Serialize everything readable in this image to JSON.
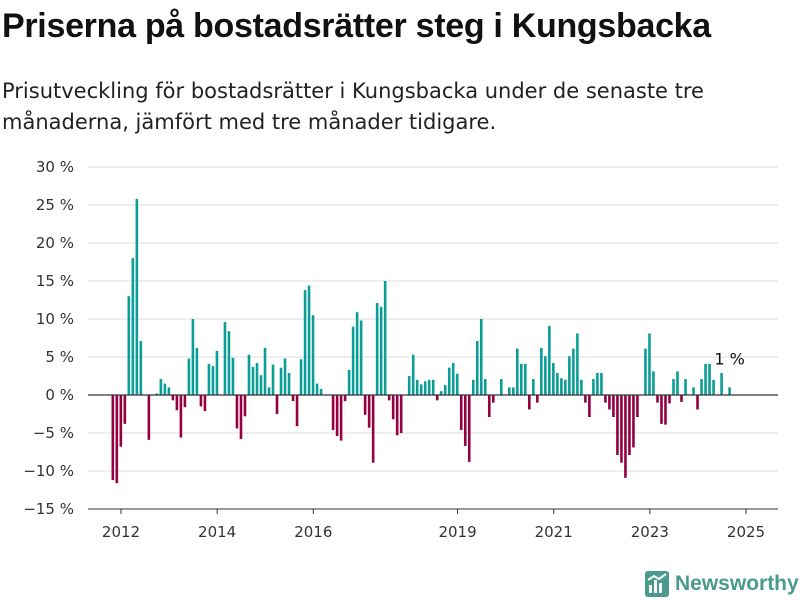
{
  "header": {
    "title": "Priserna på bostadsrätter steg i Kungsbacka",
    "subtitle": "Prisutveckling för bostadsrätter i Kungsbacka under de senaste tre månaderna, jämfört med tre månader tidigare."
  },
  "brand": {
    "name": "Newsworthy",
    "icon": "newsworthy-logo-icon",
    "color": "#4a9a8d"
  },
  "colors": {
    "positive": "#0b9e96",
    "negative": "#950040",
    "grid": "#dddddd",
    "axis": "#333333"
  },
  "chart_data": {
    "type": "bar",
    "ylim": [
      -15,
      30
    ],
    "ytick_values": [
      -15,
      -10,
      -5,
      0,
      5,
      10,
      15,
      20,
      25,
      30
    ],
    "ytick_labels": [
      "−15 %",
      "−10 %",
      "−5 %",
      "0 %",
      "5 %",
      "10 %",
      "15 %",
      "20 %",
      "25 %",
      "30 %"
    ],
    "xtick_labels": [
      "2012",
      "2014",
      "2016",
      "2019",
      "2021",
      "2023",
      "2025"
    ],
    "xtick_positions": [
      2012.25,
      2014.25,
      2016.25,
      2019.25,
      2021.25,
      2023.25,
      2025.25
    ],
    "x_start": 2012.08,
    "x_step": 0.0833,
    "values": [
      -11.2,
      -11.6,
      -6.8,
      -3.8,
      13,
      18,
      25.8,
      7.1,
      0,
      -5.9,
      0,
      0.2,
      2.1,
      1.5,
      1,
      -0.7,
      -2,
      -5.6,
      -1.6,
      4.8,
      10,
      6.2,
      -1.5,
      -2.1,
      4.1,
      3.8,
      5.8,
      0,
      9.6,
      8.4,
      4.9,
      -4.4,
      -5.8,
      -2.8,
      5.3,
      3.7,
      4.2,
      2.6,
      6.2,
      1,
      4,
      -2.5,
      3.6,
      4.8,
      2.9,
      -0.8,
      -4.1,
      4.7,
      13.8,
      14.4,
      10.5,
      1.5,
      0.8,
      0,
      0,
      -4.6,
      -5.4,
      -6,
      -0.8,
      3.3,
      9,
      10.9,
      9.8,
      -2.6,
      -4.3,
      -8.9,
      12.1,
      11.6,
      15,
      -0.7,
      -3.2,
      -5.3,
      -5,
      0,
      2.5,
      5.3,
      2,
      1.4,
      1.8,
      2,
      2,
      -0.7,
      0.5,
      1.3,
      3.6,
      4.2,
      2.8,
      -4.6,
      -6.7,
      -8.8,
      2,
      7.1,
      10,
      2.1,
      -2.9,
      -1,
      0,
      2.1,
      0,
      1,
      1,
      6.1,
      4.1,
      4.1,
      -1.9,
      2.1,
      -1,
      6.2,
      5.1,
      9.1,
      4.2,
      2.9,
      2.2,
      2,
      5.1,
      6.1,
      8.1,
      2,
      -1,
      -2.9,
      2.1,
      2.9,
      2.9,
      -1,
      -1.9,
      -2.9,
      -7.9,
      -8.9,
      -10.9,
      -7.9,
      -6.9,
      -2.9,
      0,
      6.1,
      8.1,
      3.1,
      -1,
      -3.8,
      -3.9,
      -1.1,
      2.1,
      3.1,
      -0.9,
      2.1,
      0,
      1,
      -1.9,
      2.1,
      4.1,
      4.1,
      2,
      0,
      2.9,
      0,
      1
    ],
    "last_value_label": "1 %"
  }
}
